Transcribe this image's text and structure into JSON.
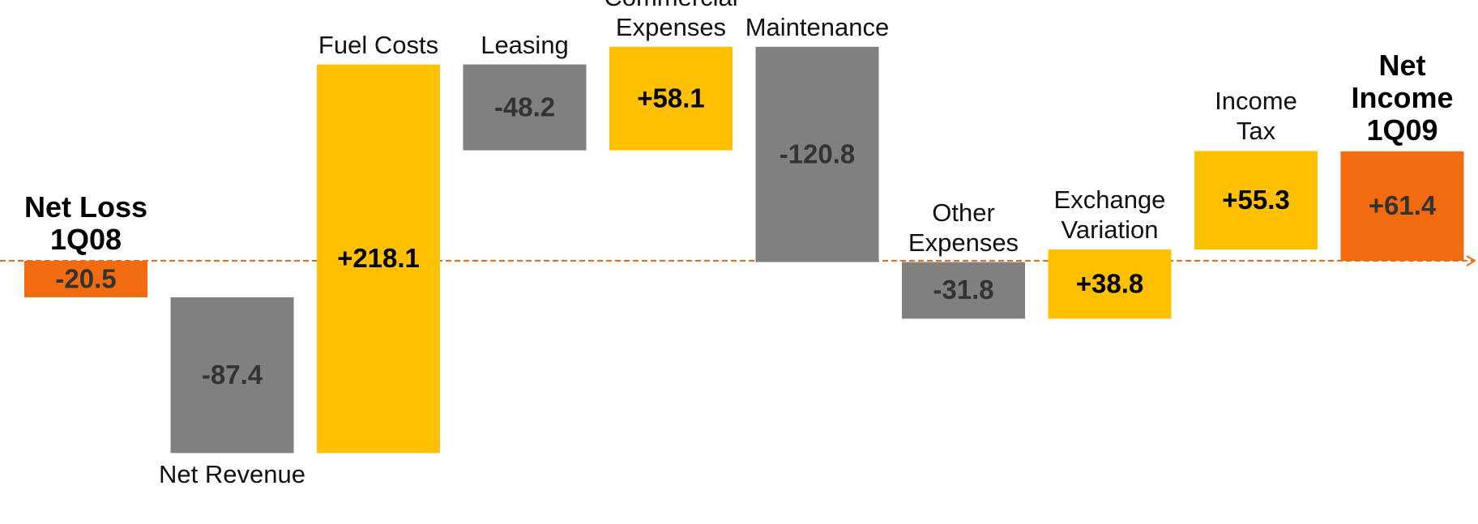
{
  "chart_data": {
    "type": "waterfall",
    "categories": [
      "Net Loss\n1Q08",
      "Net Revenue",
      "Fuel Costs",
      "Leasing",
      "Commercial\nExpenses",
      "Maintenance",
      "Other\nExpenses",
      "Exchange\nVariation",
      "Income\nTax",
      "Net\nIncome\n1Q09"
    ],
    "values": [
      -20.5,
      -87.4,
      218.1,
      -48.2,
      58.1,
      -120.8,
      -31.8,
      38.8,
      55.3,
      61.4
    ],
    "value_labels": [
      "-20.5",
      "-87.4",
      "+218.1",
      "-48.2",
      "+58.1",
      "-120.8",
      "-31.8",
      "+38.8",
      "+55.3",
      "+61.4"
    ],
    "colors": [
      "#f26b10",
      "#808080",
      "#ffc000",
      "#808080",
      "#ffc000",
      "#808080",
      "#808080",
      "#ffc000",
      "#ffc000",
      "#f26b10"
    ],
    "total_color": "#f26b10",
    "label_position": [
      "above",
      "below",
      "above",
      "above",
      "above",
      "above",
      "above",
      "above",
      "above",
      "above"
    ]
  }
}
